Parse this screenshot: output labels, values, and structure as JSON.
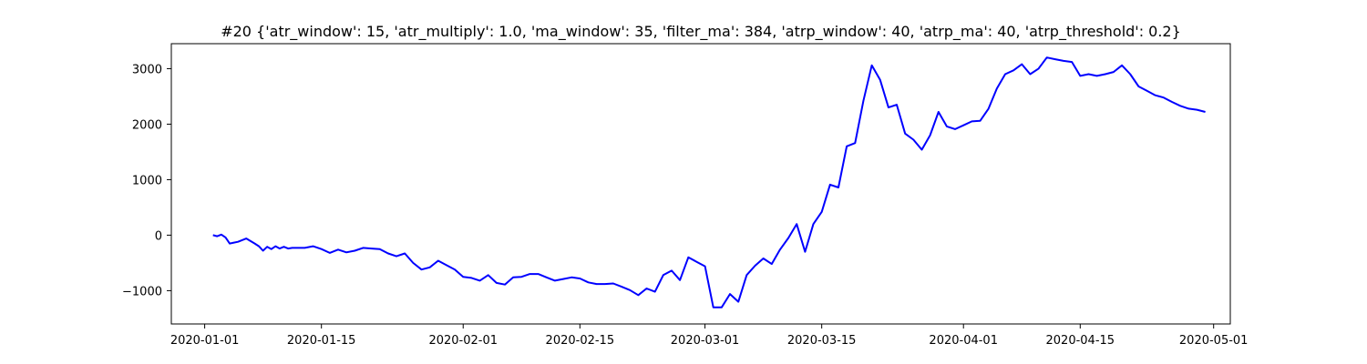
{
  "chart_data": {
    "type": "line",
    "title": "#20 {'atr_window': 15, 'atr_multiply': 1.0, 'ma_window': 35, 'filter_ma': 384, 'atrp_window': 40, 'atrp_ma': 40, 'atrp_threshold': 0.2}",
    "xlabel": "",
    "ylabel": "",
    "xlim": [
      "2019-12-28",
      "2020-05-03"
    ],
    "ylim": [
      -1600,
      3450
    ],
    "x_ticks": [
      "2020-01-01",
      "2020-01-15",
      "2020-02-01",
      "2020-02-15",
      "2020-03-01",
      "2020-03-15",
      "2020-04-01",
      "2020-04-15",
      "2020-05-01"
    ],
    "y_ticks": [
      -1000,
      0,
      1000,
      2000,
      3000
    ],
    "grid": false,
    "series": [
      {
        "color": "#0000ff",
        "x": [
          "2020-01-02",
          "2020-01-02",
          "2020-01-03",
          "2020-01-03",
          "2020-01-04",
          "2020-01-05",
          "2020-01-06",
          "2020-01-07",
          "2020-01-07",
          "2020-01-08",
          "2020-01-08",
          "2020-01-09",
          "2020-01-09",
          "2020-01-10",
          "2020-01-10",
          "2020-01-11",
          "2020-01-11",
          "2020-01-13",
          "2020-01-14",
          "2020-01-15",
          "2020-01-16",
          "2020-01-17",
          "2020-01-18",
          "2020-01-19",
          "2020-01-20",
          "2020-01-21",
          "2020-01-22",
          "2020-01-23",
          "2020-01-24",
          "2020-01-25",
          "2020-01-26",
          "2020-01-27",
          "2020-01-28",
          "2020-01-29",
          "2020-01-30",
          "2020-01-31",
          "2020-02-01",
          "2020-02-02",
          "2020-02-03",
          "2020-02-04",
          "2020-02-05",
          "2020-02-06",
          "2020-02-07",
          "2020-02-08",
          "2020-02-09",
          "2020-02-10",
          "2020-02-11",
          "2020-02-12",
          "2020-02-13",
          "2020-02-14",
          "2020-02-15",
          "2020-02-16",
          "2020-02-17",
          "2020-02-18",
          "2020-02-19",
          "2020-02-20",
          "2020-02-21",
          "2020-02-22",
          "2020-02-23",
          "2020-02-24",
          "2020-02-25",
          "2020-02-26",
          "2020-02-27",
          "2020-02-28",
          "2020-02-29",
          "2020-03-01",
          "2020-03-02",
          "2020-03-03",
          "2020-03-04",
          "2020-03-05",
          "2020-03-06",
          "2020-03-07",
          "2020-03-08",
          "2020-03-09",
          "2020-03-10",
          "2020-03-11",
          "2020-03-12",
          "2020-03-13",
          "2020-03-14",
          "2020-03-15",
          "2020-03-16",
          "2020-03-17",
          "2020-03-18",
          "2020-03-19",
          "2020-03-20",
          "2020-03-21",
          "2020-03-22",
          "2020-03-23",
          "2020-03-24",
          "2020-03-25",
          "2020-03-26",
          "2020-03-27",
          "2020-03-28",
          "2020-03-29",
          "2020-03-30",
          "2020-03-31",
          "2020-04-01",
          "2020-04-02",
          "2020-04-03",
          "2020-04-04",
          "2020-04-05",
          "2020-04-06",
          "2020-04-07",
          "2020-04-08",
          "2020-04-09",
          "2020-04-10",
          "2020-04-11",
          "2020-04-12",
          "2020-04-13",
          "2020-04-14",
          "2020-04-15",
          "2020-04-16",
          "2020-04-17",
          "2020-04-18",
          "2020-04-19",
          "2020-04-20",
          "2020-04-21",
          "2020-04-22",
          "2020-04-23",
          "2020-04-24",
          "2020-04-25",
          "2020-04-26",
          "2020-04-27",
          "2020-04-28",
          "2020-04-29",
          "2020-04-30"
        ],
        "y": [
          0,
          -20,
          10,
          -40,
          -150,
          -120,
          -60,
          -150,
          -200,
          -280,
          -210,
          -250,
          -200,
          -240,
          -210,
          -240,
          -230,
          -230,
          -200,
          -250,
          -320,
          -260,
          -310,
          -280,
          -230,
          -240,
          -250,
          -330,
          -380,
          -330,
          -500,
          -620,
          -580,
          -460,
          -540,
          -620,
          -750,
          -770,
          -820,
          -720,
          -860,
          -890,
          -760,
          -750,
          -700,
          -700,
          -760,
          -820,
          -790,
          -760,
          -780,
          -850,
          -880,
          -880,
          -870,
          -930,
          -990,
          -1080,
          -960,
          -1020,
          -720,
          -640,
          -810,
          -400,
          -480,
          -560,
          -1300,
          -1300,
          -1060,
          -1200,
          -720,
          -550,
          -420,
          -520,
          -260,
          -50,
          200,
          -300,
          200,
          420,
          910,
          860,
          1600,
          1660,
          2420,
          3060,
          2800,
          2300,
          2350,
          1830,
          1720,
          1540,
          1800,
          2220,
          1960,
          1910,
          1980,
          2050,
          2060,
          2280,
          2640,
          2900,
          2970,
          3080,
          2900,
          3000,
          3200,
          3170,
          3140,
          3120,
          2870,
          2900,
          2870,
          2900,
          2940,
          3060,
          2900,
          2680,
          2600,
          2520,
          2480,
          2400,
          2330,
          2280,
          2260,
          2220
        ]
      }
    ]
  }
}
